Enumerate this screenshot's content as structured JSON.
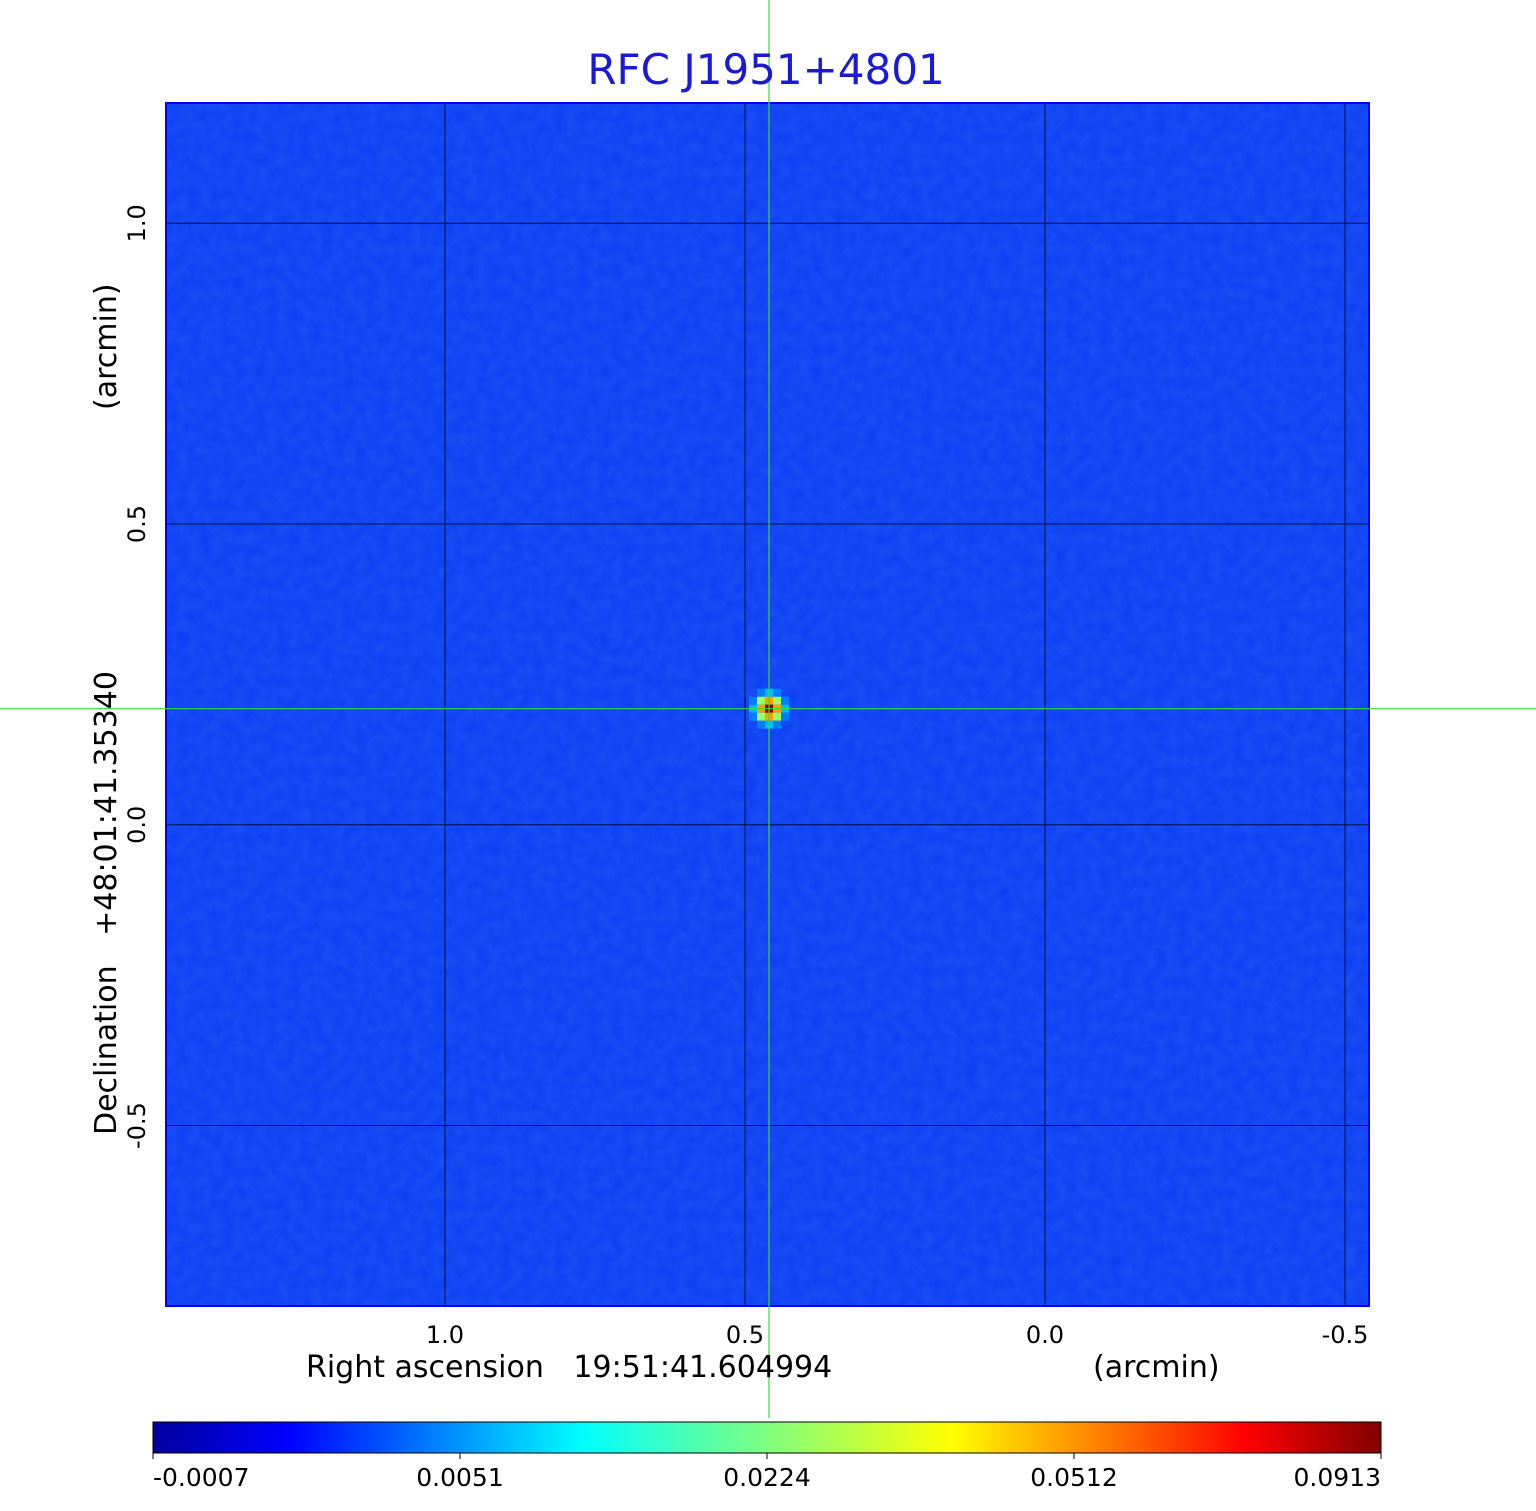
{
  "chart_data": {
    "type": "heatmap",
    "title": "RFC J1951+4801",
    "xlabel_prefix": "Right ascension",
    "xlabel_value": "19:51:41.604994",
    "xlabel_unit": "(arcmin)",
    "ylabel_prefix": "Declination",
    "ylabel_value": "+48:01:41.35340",
    "ylabel_unit": "(arcmin)",
    "x_ticks": [
      "1.0",
      "0.5",
      "0.0",
      "-0.5"
    ],
    "y_ticks": [
      "1.0",
      "0.5",
      "0.0",
      "-0.5"
    ],
    "x_tick_values": [
      1.0,
      0.5,
      0.0,
      -0.5
    ],
    "y_tick_values": [
      1.0,
      0.5,
      0.0,
      -0.5
    ],
    "xlim": [
      1.465,
      -0.54
    ],
    "ylim": [
      -0.8,
      1.2
    ],
    "grid": true,
    "crosshair": {
      "x": 0.46,
      "y": 0.193,
      "color": "#33dd33"
    },
    "source_peak": {
      "x": 0.46,
      "y": 0.193,
      "value": 0.0913
    },
    "background_level": -0.0007,
    "colormap": "jet",
    "colorbar_ticks": [
      "-0.0007",
      "0.0051",
      "0.0224",
      "0.0512",
      "0.0913"
    ],
    "colorbar_tick_values": [
      -0.0007,
      0.0051,
      0.0224,
      0.0512,
      0.0913
    ]
  }
}
